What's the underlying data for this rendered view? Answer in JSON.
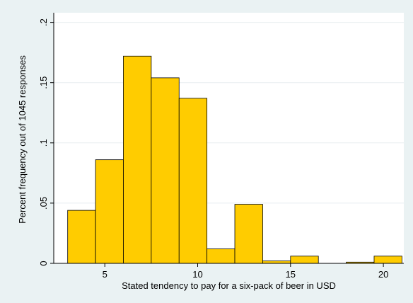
{
  "chart_data": {
    "type": "bar",
    "xlabel": "Stated tendency to pay for a six-pack of beer in USD",
    "ylabel": "Percent frequency out of 1045 responses",
    "xlim": [
      2.25,
      21.1
    ],
    "ylim": [
      0,
      0.208
    ],
    "x_ticks": [
      5,
      10,
      15,
      20
    ],
    "y_ticks": [
      0,
      0.05,
      0.1,
      0.15,
      0.2
    ],
    "y_tick_labels": [
      "0",
      ".05",
      ".1",
      ".15",
      ".2"
    ],
    "grid": true,
    "bar_color": "#ffcc00",
    "bar_edge_color": "#000000",
    "bins": [
      {
        "x0": 3.0,
        "x1": 4.5,
        "value": 0.044
      },
      {
        "x0": 4.5,
        "x1": 6.0,
        "value": 0.086
      },
      {
        "x0": 6.0,
        "x1": 7.5,
        "value": 0.172
      },
      {
        "x0": 7.5,
        "x1": 9.0,
        "value": 0.154
      },
      {
        "x0": 9.0,
        "x1": 10.5,
        "value": 0.137
      },
      {
        "x0": 10.5,
        "x1": 12.0,
        "value": 0.012
      },
      {
        "x0": 12.0,
        "x1": 13.5,
        "value": 0.049
      },
      {
        "x0": 13.5,
        "x1": 15.0,
        "value": 0.002
      },
      {
        "x0": 15.0,
        "x1": 16.5,
        "value": 0.006
      },
      {
        "x0": 18.0,
        "x1": 19.5,
        "value": 0.001
      },
      {
        "x0": 19.5,
        "x1": 21.0,
        "value": 0.006
      }
    ]
  }
}
